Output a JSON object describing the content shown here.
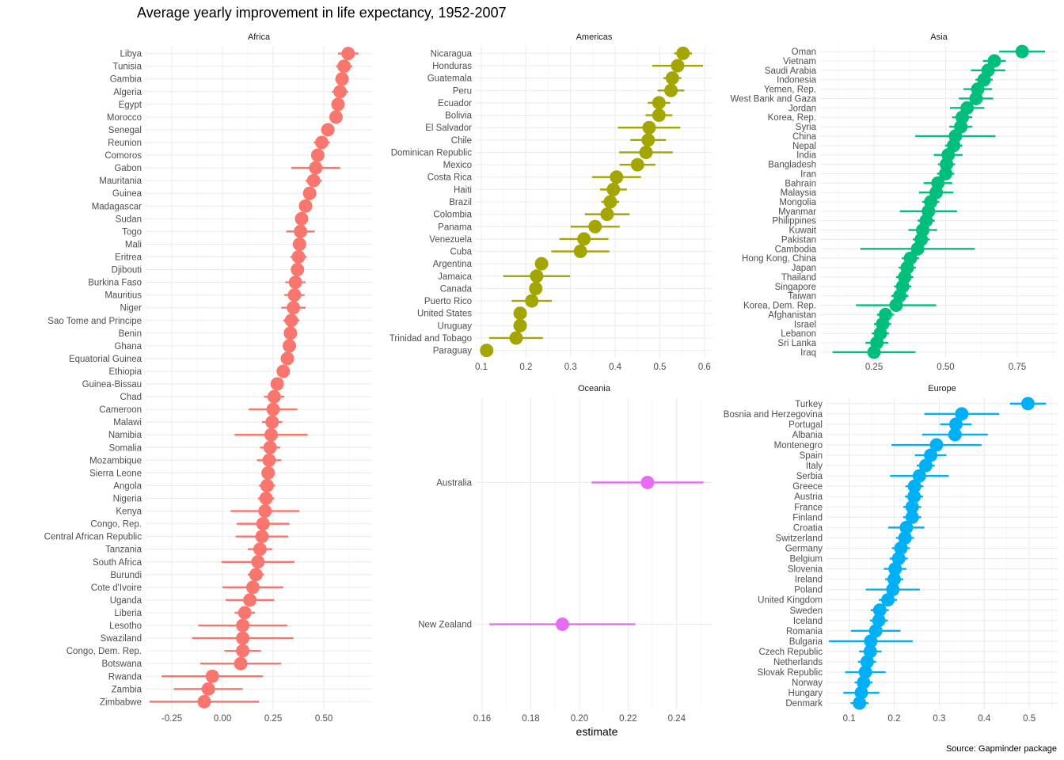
{
  "title": "Average yearly improvement in life expectancy, 1952-2007",
  "caption": "Source: Gapminder package",
  "xlabel": "estimate",
  "colors": {
    "Africa": "#F8766D",
    "Americas": "#A3A500",
    "Asia": "#00BF7D",
    "Europe": "#00B0F6",
    "Oceania": "#E76BF3"
  },
  "chart_data": [
    {
      "type": "scatter",
      "panel": "Africa",
      "xlim": [
        -0.379,
        0.738
      ],
      "ticks": [
        -0.25,
        0,
        0.25,
        0.5
      ],
      "tick_labels": [
        "-0.25",
        "0.00",
        "0.25",
        "0.50"
      ],
      "countries": [
        "Libya",
        "Tunisia",
        "Gambia",
        "Algeria",
        "Egypt",
        "Morocco",
        "Senegal",
        "Reunion",
        "Comoros",
        "Gabon",
        "Mauritania",
        "Guinea",
        "Madagascar",
        "Sudan",
        "Togo",
        "Mali",
        "Eritrea",
        "Djibouti",
        "Burkina Faso",
        "Mauritius",
        "Niger",
        "Sao Tome and Principe",
        "Benin",
        "Ghana",
        "Equatorial Guinea",
        "Ethiopia",
        "Guinea-Bissau",
        "Chad",
        "Cameroon",
        "Malawi",
        "Namibia",
        "Somalia",
        "Mozambique",
        "Sierra Leone",
        "Angola",
        "Nigeria",
        "Kenya",
        "Congo, Rep.",
        "Central African Republic",
        "Tanzania",
        "South Africa",
        "Burundi",
        "Cote d'Ivoire",
        "Uganda",
        "Liberia",
        "Lesotho",
        "Swaziland",
        "Congo, Dem. Rep.",
        "Botswana",
        "Rwanda",
        "Zambia",
        "Zimbabwe"
      ],
      "estimate": [
        0.62,
        0.6,
        0.59,
        0.58,
        0.57,
        0.56,
        0.52,
        0.49,
        0.47,
        0.46,
        0.45,
        0.43,
        0.41,
        0.39,
        0.385,
        0.38,
        0.375,
        0.37,
        0.36,
        0.355,
        0.35,
        0.34,
        0.335,
        0.33,
        0.32,
        0.3,
        0.27,
        0.255,
        0.25,
        0.245,
        0.24,
        0.235,
        0.23,
        0.225,
        0.22,
        0.215,
        0.21,
        0.2,
        0.195,
        0.185,
        0.175,
        0.165,
        0.15,
        0.135,
        0.11,
        0.1,
        0.1,
        0.1,
        0.09,
        -0.05,
        -0.07,
        -0.09
      ],
      "ci_halfwidth": [
        0.05,
        0.04,
        0.03,
        0.04,
        0.03,
        0.03,
        0.03,
        0.04,
        0.03,
        0.12,
        0.04,
        0.03,
        0.03,
        0.03,
        0.07,
        0.03,
        0.04,
        0.03,
        0.05,
        0.05,
        0.06,
        0.04,
        0.03,
        0.03,
        0.03,
        0.03,
        0.03,
        0.05,
        0.12,
        0.05,
        0.18,
        0.05,
        0.06,
        0.03,
        0.04,
        0.04,
        0.17,
        0.13,
        0.13,
        0.06,
        0.18,
        0.04,
        0.15,
        0.12,
        0.05,
        0.22,
        0.25,
        0.09,
        0.2,
        0.25,
        0.17,
        0.27
      ]
    },
    {
      "type": "scatter",
      "panel": "Americas",
      "xlim": [
        0.0876,
        0.618
      ],
      "ticks": [
        0.1,
        0.2,
        0.3,
        0.4,
        0.5,
        0.6
      ],
      "tick_labels": [
        "0.1",
        "0.2",
        "0.3",
        "0.4",
        "0.5",
        "0.6"
      ],
      "countries": [
        "Nicaragua",
        "Honduras",
        "Guatemala",
        "Peru",
        "Ecuador",
        "Bolivia",
        "El Salvador",
        "Chile",
        "Dominican Republic",
        "Mexico",
        "Costa Rica",
        "Haiti",
        "Brazil",
        "Colombia",
        "Panama",
        "Venezuela",
        "Cuba",
        "Argentina",
        "Jamaica",
        "Canada",
        "Puerto Rico",
        "United States",
        "Uruguay",
        "Trinidad and Tobago",
        "Paraguay"
      ],
      "estimate": [
        0.552,
        0.54,
        0.528,
        0.525,
        0.498,
        0.498,
        0.476,
        0.474,
        0.469,
        0.45,
        0.403,
        0.396,
        0.389,
        0.382,
        0.355,
        0.33,
        0.322,
        0.235,
        0.224,
        0.222,
        0.213,
        0.187,
        0.187,
        0.178,
        0.112
      ],
      "ci_halfwidth": [
        0.02,
        0.057,
        0.02,
        0.03,
        0.025,
        0.03,
        0.07,
        0.04,
        0.06,
        0.04,
        0.055,
        0.03,
        0.02,
        0.05,
        0.055,
        0.055,
        0.065,
        0.01,
        0.075,
        0.01,
        0.045,
        0.01,
        0.015,
        0.06,
        0.01
      ]
    },
    {
      "type": "scatter",
      "panel": "Asia",
      "xlim": [
        0.062,
        0.891
      ],
      "ticks": [
        0.25,
        0.5,
        0.75
      ],
      "tick_labels": [
        "0.25",
        "0.50",
        "0.75"
      ],
      "countries": [
        "Oman",
        "Vietnam",
        "Saudi Arabia",
        "Indonesia",
        "Yemen, Rep.",
        "West Bank and Gaza",
        "Jordan",
        "Korea, Rep.",
        "Syria",
        "China",
        "Nepal",
        "India",
        "Bangladesh",
        "Iran",
        "Bahrain",
        "Malaysia",
        "Mongolia",
        "Myanmar",
        "Philippines",
        "Kuwait",
        "Pakistan",
        "Cambodia",
        "Hong Kong, China",
        "Japan",
        "Thailand",
        "Singapore",
        "Taiwan",
        "Korea, Dem. Rep.",
        "Afghanistan",
        "Israel",
        "Lebanon",
        "Sri Lanka",
        "Iraq"
      ],
      "estimate": [
        0.767,
        0.67,
        0.648,
        0.634,
        0.612,
        0.606,
        0.575,
        0.558,
        0.553,
        0.534,
        0.528,
        0.509,
        0.503,
        0.5,
        0.473,
        0.467,
        0.448,
        0.44,
        0.432,
        0.42,
        0.415,
        0.402,
        0.377,
        0.366,
        0.357,
        0.35,
        0.34,
        0.327,
        0.29,
        0.28,
        0.272,
        0.26,
        0.25
      ],
      "ci_halfwidth": [
        0.08,
        0.04,
        0.06,
        0.03,
        0.05,
        0.06,
        0.06,
        0.035,
        0.04,
        0.14,
        0.03,
        0.05,
        0.03,
        0.03,
        0.05,
        0.06,
        0.03,
        0.1,
        0.03,
        0.05,
        0.03,
        0.2,
        0.03,
        0.03,
        0.03,
        0.03,
        0.03,
        0.14,
        0.03,
        0.03,
        0.03,
        0.04,
        0.145
      ]
    },
    {
      "type": "scatter",
      "panel": "Europe",
      "xlim": [
        0.0497,
        0.563
      ],
      "ticks": [
        0.1,
        0.2,
        0.3,
        0.4,
        0.5
      ],
      "tick_labels": [
        "0.1",
        "0.2",
        "0.3",
        "0.4",
        "0.5"
      ],
      "countries": [
        "Turkey",
        "Bosnia and Herzegovina",
        "Portugal",
        "Albania",
        "Montenegro",
        "Spain",
        "Italy",
        "Serbia",
        "Greece",
        "Austria",
        "France",
        "Finland",
        "Croatia",
        "Switzerland",
        "Germany",
        "Belgium",
        "Slovenia",
        "Ireland",
        "Poland",
        "United Kingdom",
        "Sweden",
        "Iceland",
        "Romania",
        "Bulgaria",
        "Czech Republic",
        "Netherlands",
        "Slovak Republic",
        "Norway",
        "Hungary",
        "Denmark"
      ],
      "estimate": [
        0.497,
        0.35,
        0.337,
        0.335,
        0.294,
        0.281,
        0.27,
        0.256,
        0.245,
        0.244,
        0.24,
        0.24,
        0.227,
        0.224,
        0.215,
        0.21,
        0.202,
        0.2,
        0.197,
        0.186,
        0.168,
        0.166,
        0.159,
        0.148,
        0.147,
        0.14,
        0.136,
        0.132,
        0.127,
        0.123
      ],
      "ci_halfwidth": [
        0.04,
        0.083,
        0.035,
        0.073,
        0.1,
        0.035,
        0.02,
        0.065,
        0.02,
        0.02,
        0.02,
        0.02,
        0.04,
        0.02,
        0.02,
        0.02,
        0.025,
        0.02,
        0.06,
        0.02,
        0.02,
        0.02,
        0.055,
        0.093,
        0.025,
        0.02,
        0.045,
        0.02,
        0.04,
        0.02
      ]
    },
    {
      "type": "scatter",
      "panel": "Oceania",
      "xlim": [
        0.1574,
        0.2547
      ],
      "ticks": [
        0.16,
        0.18,
        0.2,
        0.22,
        0.24
      ],
      "tick_labels": [
        "0.16",
        "0.18",
        "0.20",
        "0.22",
        "0.24"
      ],
      "countries": [
        "Australia",
        "New Zealand"
      ],
      "estimate": [
        0.228,
        0.193
      ],
      "ci_halfwidth": [
        0.023,
        0.03
      ]
    }
  ]
}
